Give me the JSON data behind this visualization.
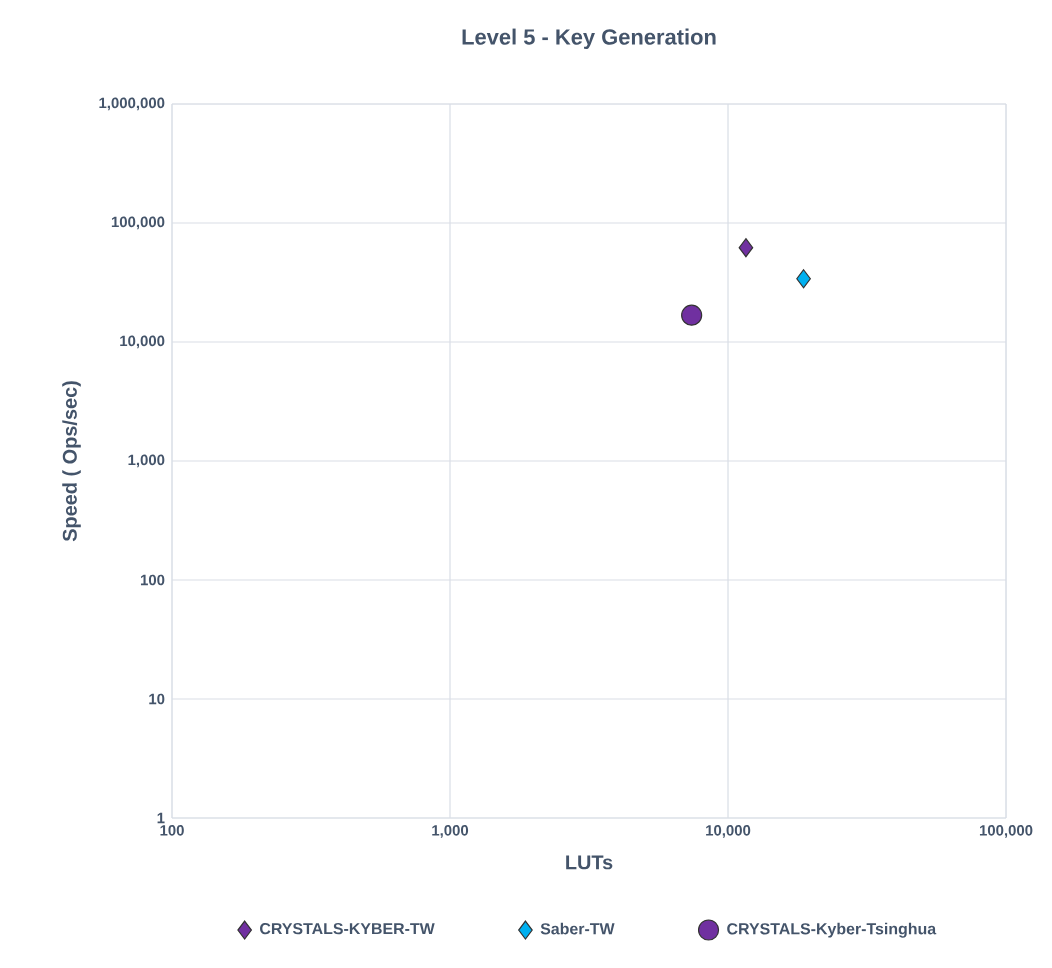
{
  "chart_data": {
    "type": "scatter",
    "title": "Level 5 - Key Generation",
    "xlabel": "LUTs",
    "ylabel": "Speed ( Ops/sec)",
    "log": "xy",
    "grid": true,
    "legend": "bottom",
    "xlim": [
      100,
      100000
    ],
    "ylim": [
      1,
      1000000
    ],
    "xticks": [
      100,
      {
        "value": 1000,
        "label": "1,000"
      },
      {
        "value": 10000,
        "label": "10,000"
      },
      {
        "value": 100000,
        "label": "100,000"
      }
    ],
    "yticks": [
      1,
      10,
      100,
      {
        "value": 1000,
        "label": "1,000"
      },
      {
        "value": 10000,
        "label": "10,000"
      },
      {
        "value": 100000,
        "label": "100,000"
      },
      {
        "value": 1000000,
        "label": "1,000,000"
      }
    ],
    "series": [
      {
        "name": "CRYSTALS-KYBER-TW",
        "color": "#7030a0",
        "marker": "diamond",
        "x": [
          11600
        ],
        "values": [
          62000
        ]
      },
      {
        "name": "Saber-TW",
        "color": "#00b0f0",
        "marker": "diamond",
        "x": [
          18700
        ],
        "values": [
          34000
        ]
      },
      {
        "name": "CRYSTALS-Kyber-Tsinghua",
        "color": "#7030a0",
        "marker": "circle",
        "x": [
          7400
        ],
        "values": [
          16800
        ]
      }
    ]
  }
}
